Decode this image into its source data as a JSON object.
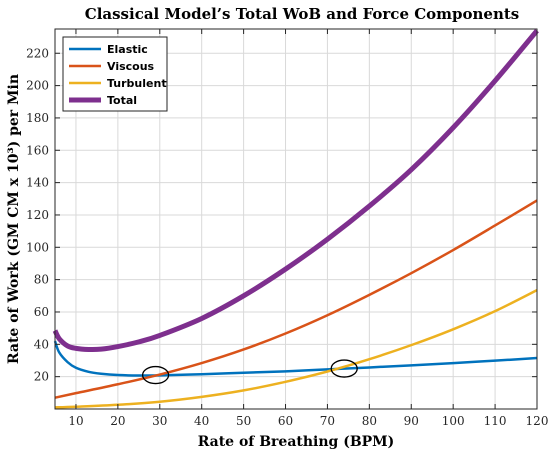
{
  "chart_data": {
    "type": "line",
    "title": "Classical Model’s Total WoB and Force Components",
    "xlabel": "Rate of Breathing (BPM)",
    "ylabel": "Rate of Work (GM CM x 10³) per Min",
    "xlim": [
      5,
      120
    ],
    "ylim": [
      0,
      235
    ],
    "xticks": [
      10,
      20,
      30,
      40,
      50,
      60,
      70,
      80,
      90,
      100,
      110,
      120
    ],
    "yticks": [
      20,
      40,
      60,
      80,
      100,
      120,
      140,
      160,
      180,
      200,
      220
    ],
    "grid": true,
    "legend_position": "top-left",
    "series": [
      {
        "name": "Elastic",
        "color": "#0072BD",
        "x": [
          5,
          6,
          8,
          10,
          13,
          16,
          20,
          25,
          30,
          40,
          50,
          60,
          70,
          80,
          90,
          100,
          110,
          120
        ],
        "y": [
          42,
          35,
          29,
          25.5,
          23,
          21.8,
          21,
          20.7,
          20.8,
          21.5,
          22.4,
          23.3,
          24.5,
          25.7,
          27,
          28.4,
          29.9,
          31.5
        ]
      },
      {
        "name": "Viscous",
        "color": "#D95319",
        "x": [
          5,
          10,
          20,
          30,
          40,
          50,
          60,
          70,
          80,
          90,
          100,
          110,
          120
        ],
        "y": [
          7,
          9.8,
          15.3,
          21.3,
          28.4,
          36.8,
          46.7,
          58,
          70.6,
          84,
          98.3,
          113.5,
          129
        ]
      },
      {
        "name": "Turbulent",
        "color": "#EDB120",
        "x": [
          5,
          10,
          20,
          30,
          40,
          50,
          60,
          70,
          80,
          90,
          100,
          110,
          120
        ],
        "y": [
          1,
          1.4,
          2.6,
          4.5,
          7.5,
          11.5,
          16.8,
          23.2,
          30.8,
          39.5,
          49.3,
          60.5,
          73.5
        ]
      },
      {
        "name": "Total",
        "color": "#7E2F8E",
        "x": [
          5,
          6,
          8,
          10,
          13,
          16,
          20,
          25,
          30,
          40,
          50,
          60,
          70,
          80,
          90,
          100,
          110,
          120
        ],
        "y": [
          48.5,
          43.5,
          39,
          37.5,
          36.8,
          37,
          38.6,
          41.5,
          45.5,
          56,
          70,
          86.5,
          105,
          125.5,
          148,
          174,
          203,
          234
        ]
      }
    ],
    "annotations": [
      {
        "shape": "ellipse",
        "x": 29,
        "y": 21
      },
      {
        "shape": "ellipse",
        "x": 74,
        "y": 25
      }
    ]
  }
}
